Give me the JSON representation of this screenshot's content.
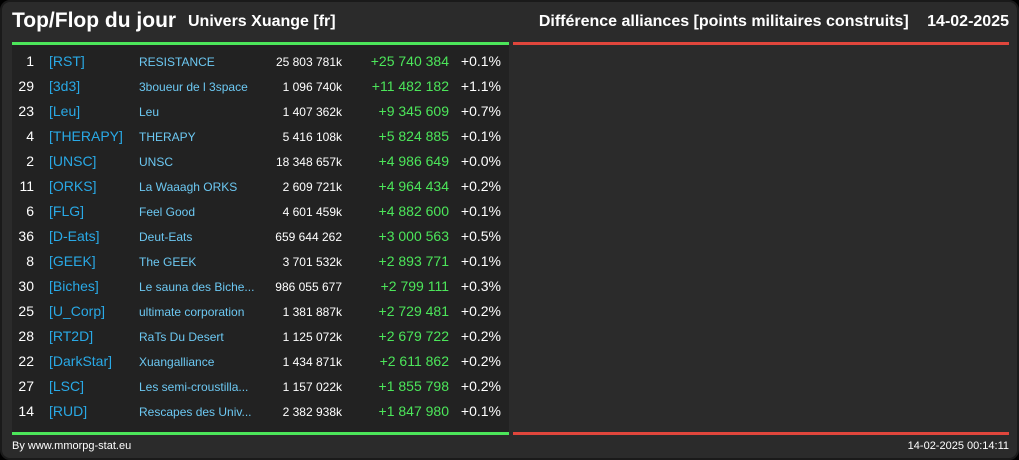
{
  "header": {
    "title": "Top/Flop du jour",
    "universe": "Univers Xuange [fr]",
    "right_title": "Différence alliances [points militaires construits]",
    "date": "14-02-2025"
  },
  "colors": {
    "background": "#2b2b2b",
    "top_accent": "#4ce65a",
    "flop_accent": "#e0463c",
    "tag": "#29a9e6",
    "positive": "#4ce65a"
  },
  "rows": [
    {
      "rank": "1",
      "tag": "[RST]",
      "name": "RESISTANCE",
      "points": "25 803 781k",
      "diff": "+25 740 384",
      "pct": "+0.1%"
    },
    {
      "rank": "29",
      "tag": "[3d3]",
      "name": "3boueur de l 3space",
      "points": "1 096 740k",
      "diff": "+11 482 182",
      "pct": "+1.1%"
    },
    {
      "rank": "23",
      "tag": "[Leu]",
      "name": "Leu",
      "points": "1 407 362k",
      "diff": "+9 345 609",
      "pct": "+0.7%"
    },
    {
      "rank": "4",
      "tag": "[THERAPY]",
      "name": "THERAPY",
      "points": "5 416 108k",
      "diff": "+5 824 885",
      "pct": "+0.1%"
    },
    {
      "rank": "2",
      "tag": "[UNSC]",
      "name": "UNSC",
      "points": "18 348 657k",
      "diff": "+4 986 649",
      "pct": "+0.0%"
    },
    {
      "rank": "11",
      "tag": "[ORKS]",
      "name": "La Waaagh ORKS",
      "points": "2 609 721k",
      "diff": "+4 964 434",
      "pct": "+0.2%"
    },
    {
      "rank": "6",
      "tag": "[FLG]",
      "name": "Feel Good",
      "points": "4 601 459k",
      "diff": "+4 882 600",
      "pct": "+0.1%"
    },
    {
      "rank": "36",
      "tag": "[D-Eats]",
      "name": "Deut-Eats",
      "points": "659 644 262",
      "diff": "+3 000 563",
      "pct": "+0.5%"
    },
    {
      "rank": "8",
      "tag": "[GEEK]",
      "name": "The GEEK",
      "points": "3 701 532k",
      "diff": "+2 893 771",
      "pct": "+0.1%"
    },
    {
      "rank": "30",
      "tag": "[Biches]",
      "name": "Le sauna des Biche...",
      "points": "986 055 677",
      "diff": "+2 799 111",
      "pct": "+0.3%"
    },
    {
      "rank": "25",
      "tag": "[U_Corp]",
      "name": "ultimate corporation",
      "points": "1 381 887k",
      "diff": "+2 729 481",
      "pct": "+0.2%"
    },
    {
      "rank": "28",
      "tag": "[RT2D]",
      "name": "RaTs Du Desert",
      "points": "1 125 072k",
      "diff": "+2 679 722",
      "pct": "+0.2%"
    },
    {
      "rank": "22",
      "tag": "[DarkStar]",
      "name": "Xuangalliance",
      "points": "1 434 871k",
      "diff": "+2 611 862",
      "pct": "+0.2%"
    },
    {
      "rank": "27",
      "tag": "[LSC]",
      "name": "Les semi-croustilla...",
      "points": "1 157 022k",
      "diff": "+1 855 798",
      "pct": "+0.2%"
    },
    {
      "rank": "14",
      "tag": "[RUD]",
      "name": "Rescapes des Univ...",
      "points": "2 382 938k",
      "diff": "+1 847 980",
      "pct": "+0.1%"
    }
  ],
  "footer": {
    "credit": "By www.mmorpg-stat.eu",
    "timestamp": "14-02-2025 00:14:11"
  }
}
